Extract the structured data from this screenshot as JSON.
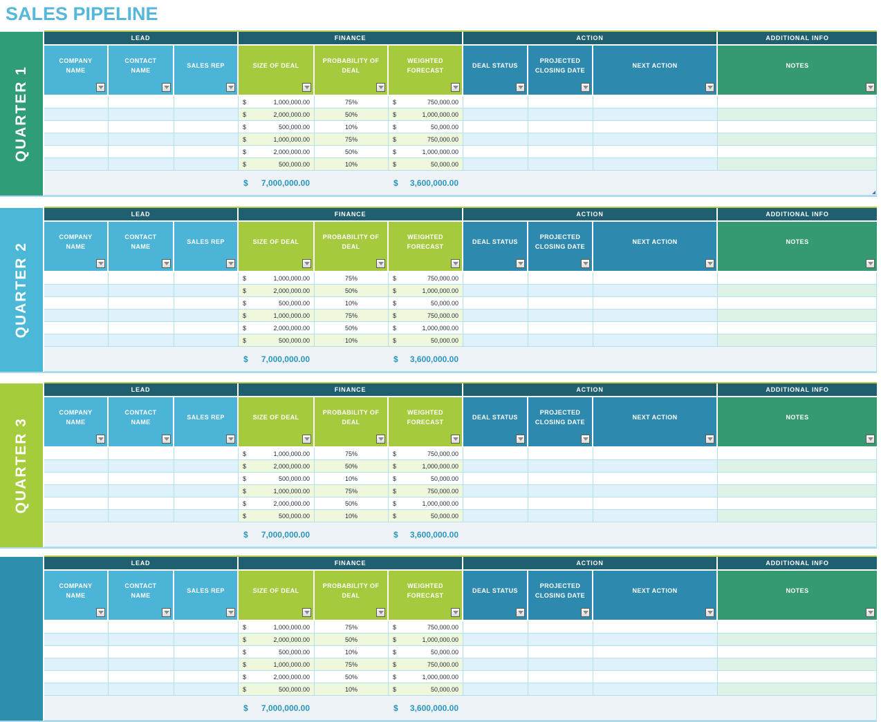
{
  "title": "SALES PIPELINE",
  "colors": {
    "title_text": "#55b7d9",
    "group_header_bg": "#1f5f6f",
    "lead_header_bg": "#4cb4d6",
    "finance_header_bg": "#a5ca3e",
    "action_header_bg": "#2d89ae",
    "notes_header_bg": "#359a71",
    "alt_row_blue": "#dff1fa",
    "alt_row_finance": "#eff7dc",
    "alt_row_notes": "#def2e6",
    "totals_bg": "#edf3f7",
    "totals_text": "#2a96bd",
    "data_text": "#1f2a38",
    "grid_line": "#b3dfee",
    "table_top_line": "#bccf44",
    "section_bottom_line": "#a9d9ec"
  },
  "icons": {
    "filter_dropdown": "triangle-down"
  },
  "currency_symbol": "$",
  "groups": [
    {
      "label": "LEAD",
      "key": "lead"
    },
    {
      "label": "FINANCE",
      "key": "finance"
    },
    {
      "label": "ACTION",
      "key": "action"
    },
    {
      "label": "ADDITIONAL INFO",
      "key": "info"
    }
  ],
  "columns": [
    {
      "id": "company_name",
      "label": "COMPANY NAME",
      "group": "lead"
    },
    {
      "id": "contact_name",
      "label": "CONTACT NAME",
      "group": "lead"
    },
    {
      "id": "sales_rep",
      "label": "SALES REP",
      "group": "lead"
    },
    {
      "id": "size_of_deal",
      "label": "SIZE OF DEAL",
      "group": "finance"
    },
    {
      "id": "probability_of_deal",
      "label": "PROBABILITY OF DEAL",
      "group": "finance"
    },
    {
      "id": "weighted_forecast",
      "label": "WEIGHTED FORECAST",
      "group": "finance"
    },
    {
      "id": "deal_status",
      "label": "DEAL STATUS",
      "group": "action"
    },
    {
      "id": "projected_closing_date",
      "label": "PROJECTED CLOSING DATE",
      "group": "action"
    },
    {
      "id": "next_action",
      "label": "NEXT ACTION",
      "group": "action"
    },
    {
      "id": "notes",
      "label": "NOTES",
      "group": "notes"
    }
  ],
  "quarters": [
    {
      "label": "QUARTER 1",
      "color": "#2f9d78",
      "partial": false,
      "has_resize_handle": true
    },
    {
      "label": "QUARTER 2",
      "color": "#4cb8d8",
      "partial": false,
      "has_resize_handle": false
    },
    {
      "label": "QUARTER 3",
      "color": "#a4cc3b",
      "partial": false,
      "has_resize_handle": false
    },
    {
      "label": "",
      "color": "#2e8fad",
      "partial": true,
      "has_resize_handle": false
    }
  ],
  "rows": [
    {
      "company_name": "",
      "contact_name": "",
      "sales_rep": "",
      "size_of_deal": "1,000,000.00",
      "probability_of_deal": "75%",
      "weighted_forecast": "750,000.00",
      "deal_status": "",
      "projected_closing_date": "",
      "next_action": "",
      "notes": ""
    },
    {
      "company_name": "",
      "contact_name": "",
      "sales_rep": "",
      "size_of_deal": "2,000,000.00",
      "probability_of_deal": "50%",
      "weighted_forecast": "1,000,000.00",
      "deal_status": "",
      "projected_closing_date": "",
      "next_action": "",
      "notes": ""
    },
    {
      "company_name": "",
      "contact_name": "",
      "sales_rep": "",
      "size_of_deal": "500,000.00",
      "probability_of_deal": "10%",
      "weighted_forecast": "50,000.00",
      "deal_status": "",
      "projected_closing_date": "",
      "next_action": "",
      "notes": ""
    },
    {
      "company_name": "",
      "contact_name": "",
      "sales_rep": "",
      "size_of_deal": "1,000,000.00",
      "probability_of_deal": "75%",
      "weighted_forecast": "750,000.00",
      "deal_status": "",
      "projected_closing_date": "",
      "next_action": "",
      "notes": ""
    },
    {
      "company_name": "",
      "contact_name": "",
      "sales_rep": "",
      "size_of_deal": "2,000,000.00",
      "probability_of_deal": "50%",
      "weighted_forecast": "1,000,000.00",
      "deal_status": "",
      "projected_closing_date": "",
      "next_action": "",
      "notes": ""
    },
    {
      "company_name": "",
      "contact_name": "",
      "sales_rep": "",
      "size_of_deal": "500,000.00",
      "probability_of_deal": "10%",
      "weighted_forecast": "50,000.00",
      "deal_status": "",
      "projected_closing_date": "",
      "next_action": "",
      "notes": ""
    }
  ],
  "totals": {
    "size_of_deal": "7,000,000.00",
    "weighted_forecast": "3,600,000.00"
  }
}
